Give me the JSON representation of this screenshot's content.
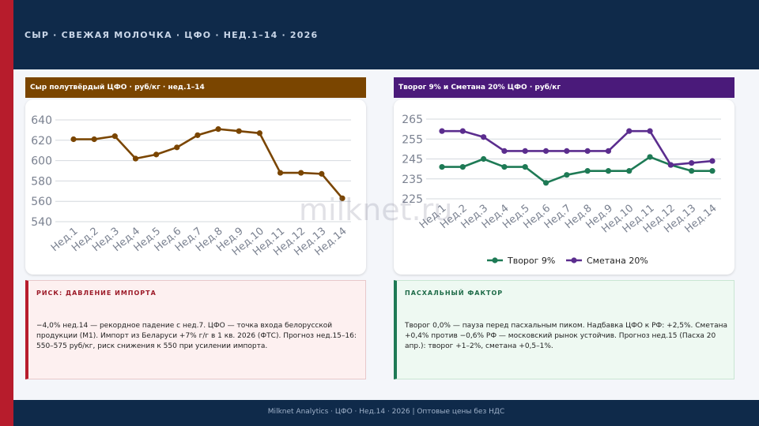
{
  "header": {
    "title": "СЫР · СВЕЖАЯ МОЛОЧКА · ЦФО · НЕД.1–14 · 2026"
  },
  "panel_left": {
    "title": "Сыр полутвёрдый ЦФО · руб/кг · нед.1–14"
  },
  "panel_right": {
    "title": "Творог 9% и Сметана 20% ЦФО · руб/кг"
  },
  "colors": {
    "navy": "#0f2a4a",
    "red": "#b71c2c",
    "brown": "#7a4500",
    "purple": "#4a1a7a",
    "green": "#1e7a55",
    "violet": "#5b2d8e",
    "grid": "#d4d8de"
  },
  "chart_data": [
    {
      "type": "line",
      "title": "Сыр полутвёрдый ЦФО · руб/кг · нед.1–14",
      "categories": [
        "Нед.1",
        "Нед.2",
        "Нед.3",
        "Нед.4",
        "Нед.5",
        "Нед.6",
        "Нед.7",
        "Нед.8",
        "Нед.9",
        "Нед.10",
        "Нед.11",
        "Нед.12",
        "Нед.13",
        "Нед.14"
      ],
      "series": [
        {
          "name": "Сыр полутвёрдый",
          "values": [
            621,
            621,
            624,
            602,
            606,
            613,
            625,
            631,
            629,
            627,
            588,
            588,
            587,
            563
          ]
        }
      ],
      "ylim": [
        540,
        640
      ],
      "yticks": [
        540,
        560,
        580,
        600,
        620,
        640
      ],
      "ytick_labels": [
        "540",
        "560",
        "580",
        "600",
        "620",
        "640"
      ],
      "grid": true
    },
    {
      "type": "line",
      "title": "Творог 9% и Сметана 20% ЦФО · руб/кг",
      "categories": [
        "Нед.1",
        "Нед.2",
        "Нед.3",
        "Нед.4",
        "Нед.5",
        "Нед.6",
        "Нед.7",
        "Нед.8",
        "Нед.9",
        "Нед.10",
        "Нед.11",
        "Нед.12",
        "Нед.13",
        "Нед.14"
      ],
      "series": [
        {
          "name": "Творог 9%",
          "values": [
            241,
            241,
            245,
            241,
            241,
            233,
            237,
            239,
            239,
            239,
            246,
            242,
            239,
            239
          ]
        },
        {
          "name": "Сметана 20%",
          "values": [
            259,
            259,
            256,
            249,
            249,
            249,
            249,
            249,
            249,
            259,
            259,
            242,
            243,
            244
          ]
        }
      ],
      "ylim": [
        225,
        265
      ],
      "yticks": [
        225,
        235,
        245,
        255,
        265
      ],
      "ytick_labels": [
        "225",
        "235",
        "245",
        "255",
        "265"
      ],
      "legend": "bottom",
      "grid": true
    }
  ],
  "risk_card": {
    "title": "РИСК: ДАВЛЕНИЕ ИМПОРТА",
    "text": "−4,0% нед.14 — рекордное падение с нед.7. ЦФО — точка входа белорусской продукции (М1). Импорт из Беларуси +7% г/г в 1 кв. 2026 (ФТС). Прогноз нед.15–16: 550–575 руб/кг, риск снижения к 550 при усилении импорта."
  },
  "easter_card": {
    "title": "ПАСХАЛЬНЫЙ ФАКТОР",
    "text": "Творог 0,0% — пауза перед пасхальным пиком. Надбавка ЦФО к РФ: +2,5%. Сметана +0,4% против −0,6% РФ — московский рынок устойчив. Прогноз нед.15 (Пасха 20 апр.): творог +1–2%, сметана +0,5–1%."
  },
  "watermark": "milknet.ru",
  "footer": {
    "text": "Milknet Analytics · ЦФО · Нед.14 · 2026 | Оптовые цены без НДС"
  }
}
